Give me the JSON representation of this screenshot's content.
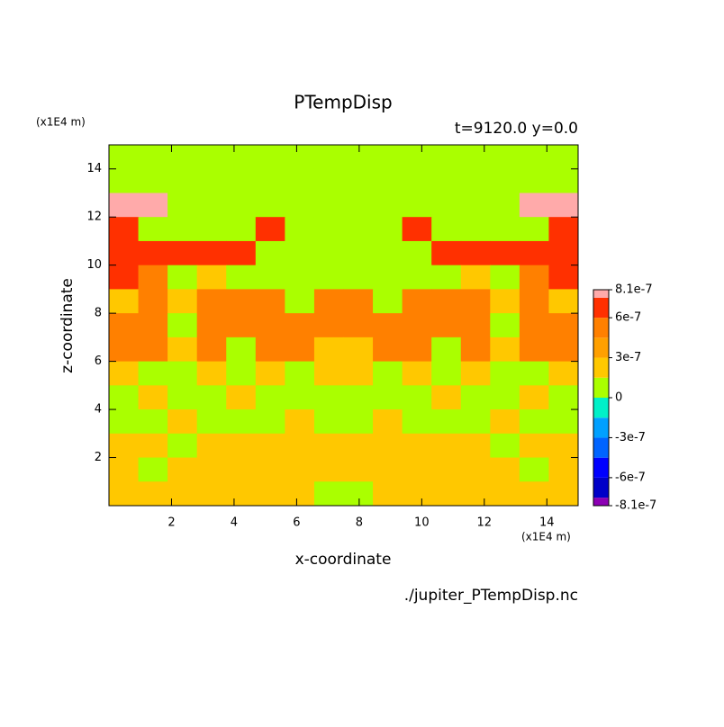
{
  "chart_data": {
    "type": "contour",
    "title": "PTempDisp",
    "subtitle": "t=9120.0 y=0.0",
    "x_label": "x-coordinate",
    "y_label": "z-coordinate",
    "x_unit": "(x1E4 m)",
    "y_unit": "(x1E4 m)",
    "source": "./jupiter_PTempDisp.nc",
    "xlim": [
      0,
      15
    ],
    "ylim": [
      0,
      15
    ],
    "xticks": [
      2,
      4,
      6,
      8,
      10,
      12,
      14
    ],
    "yticks": [
      2,
      4,
      6,
      8,
      10,
      12,
      14
    ],
    "x": [
      0.46875,
      1.40625,
      2.34375,
      3.28125,
      4.21875,
      5.15625,
      6.09375,
      7.03125,
      7.96875,
      8.90625,
      9.84375,
      10.78125,
      11.71875,
      12.65625,
      13.59375,
      14.53125
    ],
    "z": [
      14.5,
      13.5,
      12.5,
      11.5,
      10.5,
      9.5,
      8.5,
      7.5,
      6.5,
      5.5,
      4.5,
      3.5,
      2.5,
      1.5,
      0.5
    ],
    "values": [
      [
        1e-07,
        1e-07,
        1e-07,
        1e-07,
        1e-07,
        1e-07,
        1e-07,
        1e-07,
        1e-07,
        1e-07,
        1e-07,
        1e-07,
        1e-07,
        1e-07,
        1e-07,
        1e-07
      ],
      [
        1e-07,
        1e-07,
        1e-07,
        1e-07,
        1e-07,
        1e-07,
        1e-07,
        1e-07,
        1e-07,
        1e-07,
        1e-07,
        1e-07,
        1e-07,
        1e-07,
        1e-07,
        1e-07
      ],
      [
        7.8e-07,
        7.8e-07,
        1e-07,
        1e-07,
        1e-07,
        1e-07,
        1e-07,
        1e-07,
        1e-07,
        1e-07,
        1e-07,
        1e-07,
        1e-07,
        1e-07,
        7.8e-07,
        7.8e-07
      ],
      [
        7e-07,
        1e-07,
        1e-07,
        1e-07,
        1e-07,
        7e-07,
        1e-07,
        1e-07,
        1e-07,
        1e-07,
        7e-07,
        1e-07,
        1e-07,
        1e-07,
        1e-07,
        7e-07
      ],
      [
        7e-07,
        7e-07,
        7e-07,
        7e-07,
        7e-07,
        1e-07,
        1e-07,
        1e-07,
        1e-07,
        1e-07,
        1e-07,
        7e-07,
        7e-07,
        7e-07,
        7e-07,
        7e-07
      ],
      [
        7e-07,
        5e-07,
        1e-07,
        2e-07,
        1e-07,
        1e-07,
        1e-07,
        1e-07,
        1e-07,
        1e-07,
        1e-07,
        1e-07,
        2e-07,
        1e-07,
        5e-07,
        7e-07
      ],
      [
        2e-07,
        5e-07,
        2e-07,
        5e-07,
        5e-07,
        5e-07,
        1e-07,
        5e-07,
        5e-07,
        1e-07,
        5e-07,
        5e-07,
        5e-07,
        2e-07,
        5e-07,
        2e-07
      ],
      [
        5e-07,
        5e-07,
        1e-07,
        5e-07,
        5e-07,
        5e-07,
        5e-07,
        5e-07,
        5e-07,
        5e-07,
        5e-07,
        5e-07,
        5e-07,
        1e-07,
        5e-07,
        5e-07
      ],
      [
        5e-07,
        5e-07,
        2e-07,
        5e-07,
        1e-07,
        5e-07,
        5e-07,
        2e-07,
        2e-07,
        5e-07,
        5e-07,
        1e-07,
        5e-07,
        2e-07,
        5e-07,
        5e-07
      ],
      [
        2e-07,
        1e-07,
        1e-07,
        2e-07,
        1e-07,
        2e-07,
        1e-07,
        2e-07,
        2e-07,
        1e-07,
        2e-07,
        1e-07,
        2e-07,
        1e-07,
        1e-07,
        2e-07
      ],
      [
        1e-07,
        2e-07,
        1e-07,
        1e-07,
        2e-07,
        1e-07,
        1e-07,
        1e-07,
        1e-07,
        1e-07,
        1e-07,
        2e-07,
        1e-07,
        1e-07,
        2e-07,
        1e-07
      ],
      [
        1e-07,
        1e-07,
        2e-07,
        1e-07,
        1e-07,
        1e-07,
        2e-07,
        1e-07,
        1e-07,
        2e-07,
        1e-07,
        1e-07,
        1e-07,
        2e-07,
        1e-07,
        1e-07
      ],
      [
        2e-07,
        2e-07,
        1e-07,
        2e-07,
        2e-07,
        2e-07,
        2e-07,
        2e-07,
        2e-07,
        2e-07,
        2e-07,
        2e-07,
        2e-07,
        1e-07,
        2e-07,
        2e-07
      ],
      [
        2e-07,
        1e-07,
        2e-07,
        2e-07,
        2e-07,
        2e-07,
        2e-07,
        2e-07,
        2e-07,
        2e-07,
        2e-07,
        2e-07,
        2e-07,
        2e-07,
        1e-07,
        2e-07
      ],
      [
        2e-07,
        2e-07,
        2e-07,
        2e-07,
        2e-07,
        2e-07,
        2e-07,
        1e-07,
        1e-07,
        2e-07,
        2e-07,
        2e-07,
        2e-07,
        2e-07,
        2e-07,
        2e-07
      ]
    ],
    "levels": [
      -8.1e-07,
      -7.5e-07,
      -6e-07,
      -4.5e-07,
      -3e-07,
      -1.5e-07,
      0,
      1.5e-07,
      3e-07,
      4.5e-07,
      6e-07,
      7.5e-07,
      8.1e-07
    ],
    "colors": [
      "#8c00b4",
      "#0000c8",
      "#0000ff",
      "#0064ff",
      "#00a0ff",
      "#00f0c8",
      "#aaff00",
      "#ffc800",
      "#ffa000",
      "#ff8000",
      "#ff3000",
      "#ffaaaa"
    ],
    "cticks": [
      8.1e-07,
      6e-07,
      3e-07,
      0,
      -3e-07,
      -6e-07,
      -8.1e-07
    ]
  }
}
